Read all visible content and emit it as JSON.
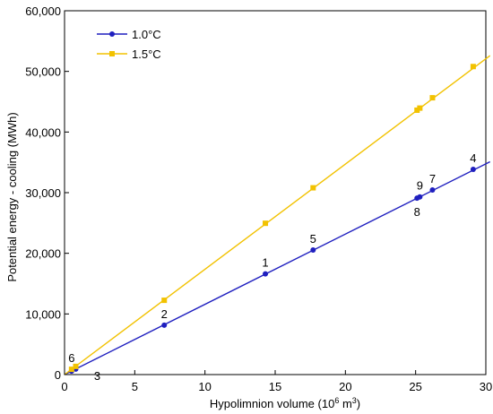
{
  "chart_data": {
    "type": "scatter",
    "xlabel": "Hypolimnion volume (10",
    "xlabel_sup": "6",
    "xlabel_unit": " m",
    "xlabel_unit_sup": "3",
    "xlabel_close": ")",
    "ylabel": "Potential energy - cooling (MWh)",
    "xlim": [
      0,
      30
    ],
    "ylim": [
      0,
      60000
    ],
    "xticks": [
      0,
      5,
      10,
      15,
      20,
      25,
      30
    ],
    "yticks": [
      0,
      10000,
      20000,
      30000,
      40000,
      50000,
      60000
    ],
    "ytick_labels": [
      "0",
      "10,000",
      "20,000",
      "30,000",
      "40,000",
      "50,000",
      "60,000"
    ],
    "legend_position": "top-left",
    "series": [
      {
        "name": "1.0°C",
        "color": "#1f1fbf",
        "marker": "circle",
        "x": [
          0.5,
          0.8,
          7.1,
          14.3,
          17.7,
          25.1,
          25.3,
          26.2,
          29.1
        ],
        "y": [
          580,
          900,
          8150,
          16600,
          20550,
          29100,
          29300,
          30450,
          33850
        ],
        "fit_line": [
          [
            0,
            0
          ],
          [
            30.3,
            35100
          ]
        ]
      },
      {
        "name": "1.5°C",
        "color": "#f2c200",
        "marker": "square",
        "x": [
          0.5,
          0.8,
          7.1,
          14.3,
          17.7,
          25.1,
          25.3,
          26.2,
          29.1
        ],
        "y": [
          870,
          1350,
          12250,
          24950,
          30800,
          43600,
          43950,
          45650,
          50800
        ],
        "fit_line": [
          [
            0,
            0
          ],
          [
            30.3,
            52600
          ]
        ]
      }
    ],
    "point_labels": [
      {
        "text": "1",
        "x": 14.3,
        "y": 16600,
        "anchor": "above"
      },
      {
        "text": "2",
        "x": 7.1,
        "y": 8150,
        "anchor": "above"
      },
      {
        "text": "3",
        "x": 0.8,
        "y": 900,
        "anchor": "right-below"
      },
      {
        "text": "4",
        "x": 29.1,
        "y": 33850,
        "anchor": "above"
      },
      {
        "text": "5",
        "x": 17.7,
        "y": 20550,
        "anchor": "above"
      },
      {
        "text": "6",
        "x": 0.5,
        "y": 870,
        "anchor": "above"
      },
      {
        "text": "7",
        "x": 26.2,
        "y": 30450,
        "anchor": "above"
      },
      {
        "text": "8",
        "x": 25.1,
        "y": 29100,
        "anchor": "below"
      },
      {
        "text": "9",
        "x": 25.3,
        "y": 29300,
        "anchor": "above"
      }
    ]
  }
}
